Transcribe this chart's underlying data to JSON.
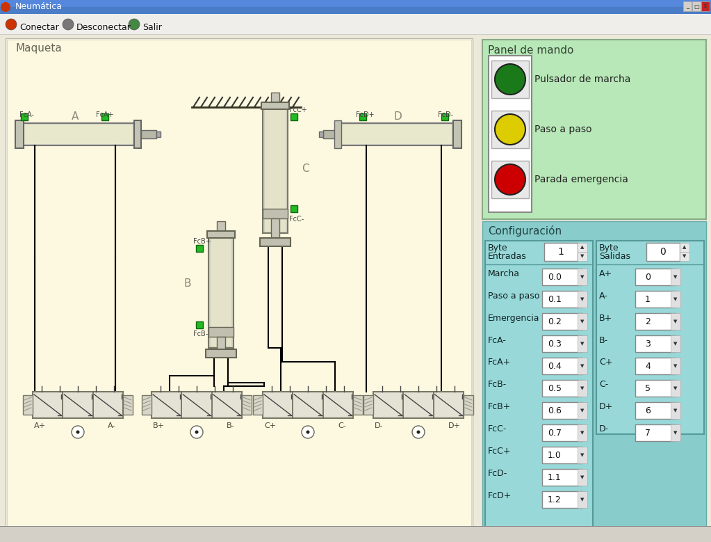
{
  "title_bar": "Neumática",
  "maqueta_label": "Maqueta",
  "panel_label": "Panel de mando",
  "config_label": "Configuración",
  "traffic_lights": [
    {
      "color": "#1a7a1a",
      "label": "Pulsador de marcha"
    },
    {
      "color": "#ddcc00",
      "label": "Paso a paso"
    },
    {
      "color": "#cc0000",
      "label": "Parada emergencia"
    }
  ],
  "byte_entradas": "1",
  "byte_salidas": "0",
  "entradas_rows": [
    [
      "Marcha",
      "0.0"
    ],
    [
      "Paso a paso",
      "0.1"
    ],
    [
      "Emergencia",
      "0.2"
    ],
    [
      "FcA-",
      "0.3"
    ],
    [
      "FcA+",
      "0.4"
    ],
    [
      "FcB-",
      "0.5"
    ],
    [
      "FcB+",
      "0.6"
    ],
    [
      "FcC-",
      "0.7"
    ],
    [
      "FcC+",
      "1.0"
    ],
    [
      "FcD-",
      "1.1"
    ],
    [
      "FcD+",
      "1.2"
    ]
  ],
  "salidas_rows": [
    [
      "A+",
      "0"
    ],
    [
      "A-",
      "1"
    ],
    [
      "B+",
      "2"
    ],
    [
      "B-",
      "3"
    ],
    [
      "C+",
      "4"
    ],
    [
      "C-",
      "5"
    ],
    [
      "D+",
      "6"
    ],
    [
      "D-",
      "7"
    ]
  ]
}
